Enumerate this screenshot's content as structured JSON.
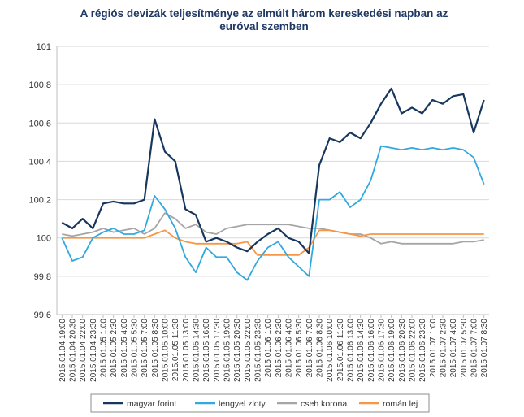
{
  "chart_data": {
    "type": "line",
    "title": "A régiós devizák teljesítménye  az elmúlt három kereskedési napban az euróval szemben",
    "title_lines": [
      "A régiós devizák teljesítménye  az elmúlt három kereskedési napban az",
      "euróval szemben"
    ],
    "xlabel": "",
    "ylabel": "",
    "ylim": [
      99.6,
      101.0
    ],
    "yticks": [
      "99,6",
      "99,8",
      "100",
      "100,2",
      "100,4",
      "100,6",
      "100,8",
      "101"
    ],
    "ytick_values": [
      99.6,
      99.8,
      100.0,
      100.2,
      100.4,
      100.6,
      100.8,
      101.0
    ],
    "grid": true,
    "legend_position": "bottom",
    "xticks": [
      "2015.01.04 19:00",
      "2015.01.04 20:30",
      "2015.01.04 22:00",
      "2015.01.04 23:30",
      "2015.01.05 1:00",
      "2015.01.05 2:30",
      "2015.01.05 4:00",
      "2015.01.05 5:30",
      "2015.01.05 7:00",
      "2015.01.05 8:30",
      "2015.01.05 10:00",
      "2015.01.05 11:30",
      "2015.01.05 13:00",
      "2015.01.05 14:30",
      "2015.01.05 16:00",
      "2015.01.05 17:30",
      "2015.01.05 19:00",
      "2015.01.05 20:30",
      "2015.01.05 22:00",
      "2015.01.05 23:30",
      "2015.01.06 1:00",
      "2015.01.06 2:30",
      "2015.01.06 4:00",
      "2015.01.06 5:30",
      "2015.01.06 7:00",
      "2015.01.06 8:30",
      "2015.01.06 10:00",
      "2015.01.06 11:30",
      "2015.01.06 13:00",
      "2015.01.06 14:30",
      "2015.01.06 16:00",
      "2015.01.06 17:30",
      "2015.01.06 19:00",
      "2015.01.06 20:30",
      "2015.01.06 22:00",
      "2015.01.06 23:30",
      "2015.01.07 1:00",
      "2015.01.07 2:30",
      "2015.01.07 4:00",
      "2015.01.07 5:30",
      "2015.01.07 7:00",
      "2015.01.07 8:30"
    ],
    "series": [
      {
        "name": "magyar forint",
        "color": "#17375e",
        "values": [
          100.08,
          100.05,
          100.1,
          100.05,
          100.18,
          100.19,
          100.18,
          100.18,
          100.2,
          100.62,
          100.45,
          100.4,
          100.15,
          100.12,
          99.98,
          100.0,
          99.98,
          99.95,
          99.93,
          99.98,
          100.02,
          100.05,
          100.0,
          99.98,
          99.92,
          100.38,
          100.52,
          100.5,
          100.55,
          100.52,
          100.6,
          100.7,
          100.78,
          100.65,
          100.68,
          100.65,
          100.72,
          100.7,
          100.74,
          100.75,
          100.55,
          100.72
        ]
      },
      {
        "name": "lengyel zloty",
        "color": "#31a9df",
        "values": [
          100.0,
          99.88,
          99.9,
          100.0,
          100.03,
          100.05,
          100.02,
          100.02,
          100.04,
          100.22,
          100.15,
          100.05,
          99.9,
          99.82,
          99.95,
          99.9,
          99.9,
          99.82,
          99.78,
          99.88,
          99.95,
          99.98,
          99.9,
          99.85,
          99.8,
          100.2,
          100.2,
          100.24,
          100.16,
          100.2,
          100.3,
          100.48,
          100.47,
          100.46,
          100.47,
          100.46,
          100.47,
          100.46,
          100.47,
          100.46,
          100.42,
          100.28
        ]
      },
      {
        "name": "cseh korona",
        "color": "#a5a5a5",
        "values": [
          100.02,
          100.01,
          100.02,
          100.03,
          100.05,
          100.03,
          100.04,
          100.05,
          100.02,
          100.05,
          100.13,
          100.1,
          100.05,
          100.07,
          100.03,
          100.02,
          100.05,
          100.06,
          100.07,
          100.07,
          100.07,
          100.07,
          100.07,
          100.06,
          100.05,
          100.05,
          100.04,
          100.03,
          100.02,
          100.02,
          100.0,
          99.97,
          99.98,
          99.97,
          99.97,
          99.97,
          99.97,
          99.97,
          99.97,
          99.98,
          99.98,
          99.99
        ]
      },
      {
        "name": "román lej",
        "color": "#f79646",
        "values": [
          100.0,
          100.0,
          100.0,
          100.0,
          100.0,
          100.0,
          100.0,
          100.0,
          100.0,
          100.02,
          100.04,
          100.0,
          99.98,
          99.97,
          99.97,
          99.97,
          99.97,
          99.97,
          99.98,
          99.91,
          99.91,
          99.91,
          99.91,
          99.91,
          99.95,
          100.04,
          100.04,
          100.03,
          100.02,
          100.01,
          100.02,
          100.02,
          100.02,
          100.02,
          100.02,
          100.02,
          100.02,
          100.02,
          100.02,
          100.02,
          100.02,
          100.02
        ]
      }
    ]
  }
}
